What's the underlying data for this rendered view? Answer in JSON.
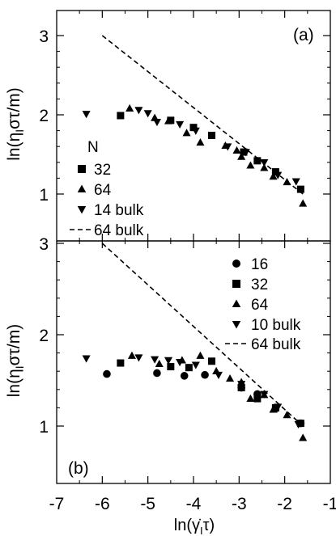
{
  "chart_data": [
    {
      "type": "scatter",
      "panel_label": "(a)",
      "ylabel": "ln(η_I στ/m)",
      "xlabel": "",
      "xlim": [
        -7,
        -1
      ],
      "ylim": [
        0.6,
        3
      ],
      "yticks": [
        "1",
        "2",
        "3"
      ],
      "legend_title": "N",
      "legend_placement": "left-lower",
      "series": [
        {
          "name": "32",
          "marker": "square",
          "points": [
            [
              -5.6,
              1.99
            ],
            [
              -4.5,
              1.93
            ],
            [
              -4.0,
              1.84
            ],
            [
              -3.6,
              1.74
            ],
            [
              -2.9,
              1.53
            ],
            [
              -2.6,
              1.42
            ],
            [
              -2.2,
              1.28
            ],
            [
              -1.65,
              1.06
            ]
          ]
        },
        {
          "name": "64",
          "marker": "triangle-up",
          "points": [
            [
              -5.4,
              2.08
            ],
            [
              -4.85,
              1.96
            ],
            [
              -4.55,
              1.92
            ],
            [
              -4.15,
              1.77
            ],
            [
              -3.85,
              1.65
            ],
            [
              -3.3,
              1.61
            ],
            [
              -3.05,
              1.55
            ],
            [
              -2.95,
              1.47
            ],
            [
              -2.75,
              1.36
            ],
            [
              -2.45,
              1.33
            ],
            [
              -2.25,
              1.22
            ],
            [
              -1.95,
              1.15
            ],
            [
              -1.6,
              0.88
            ]
          ]
        },
        {
          "name": "14 bulk",
          "marker": "triangle-down",
          "points": [
            [
              -6.35,
              2.01
            ],
            [
              -5.2,
              2.06
            ],
            [
              -5.0,
              2.02
            ],
            [
              -4.8,
              1.91
            ],
            [
              -4.3,
              1.88
            ],
            [
              -3.95,
              1.8
            ],
            [
              -3.25,
              1.6
            ],
            [
              -2.85,
              1.53
            ],
            [
              -2.45,
              1.4
            ],
            [
              -2.15,
              1.24
            ],
            [
              -1.75,
              1.16
            ]
          ]
        },
        {
          "name": "64 bulk",
          "style": "dashed",
          "points": [
            [
              -6.0,
              3.0
            ],
            [
              -1.6,
              1.0
            ]
          ]
        }
      ]
    },
    {
      "type": "scatter",
      "panel_label": "(b)",
      "ylabel": "ln(η_I στ/m)",
      "xlabel": "ln(γ̇_I τ)",
      "xlim": [
        -7,
        -1
      ],
      "ylim": [
        0.6,
        3
      ],
      "yticks": [
        "1",
        "2",
        "3"
      ],
      "xticks": [
        "-7",
        "-6",
        "-5",
        "-4",
        "-3",
        "-2",
        "-1"
      ],
      "legend_placement": "top-right",
      "series": [
        {
          "name": "16",
          "marker": "circle",
          "points": [
            [
              -5.9,
              1.57
            ],
            [
              -4.8,
              1.58
            ],
            [
              -4.2,
              1.55
            ],
            [
              -3.75,
              1.56
            ],
            [
              -2.95,
              1.42
            ],
            [
              -2.6,
              1.35
            ],
            [
              -2.2,
              1.19
            ],
            [
              -1.65,
              1.03
            ]
          ]
        },
        {
          "name": "32",
          "marker": "square",
          "points": [
            [
              -5.6,
              1.69
            ],
            [
              -4.5,
              1.65
            ],
            [
              -4.1,
              1.64
            ],
            [
              -3.6,
              1.71
            ],
            [
              -2.95,
              1.42
            ],
            [
              -2.6,
              1.3
            ],
            [
              -2.2,
              1.2
            ],
            [
              -1.65,
              1.03
            ]
          ]
        },
        {
          "name": "64",
          "marker": "triangle-up",
          "points": [
            [
              -5.35,
              1.77
            ],
            [
              -4.75,
              1.68
            ],
            [
              -4.25,
              1.72
            ],
            [
              -3.85,
              1.77
            ],
            [
              -3.5,
              1.6
            ],
            [
              -3.2,
              1.52
            ],
            [
              -2.95,
              1.48
            ],
            [
              -2.75,
              1.3
            ],
            [
              -2.45,
              1.34
            ],
            [
              -2.25,
              1.18
            ],
            [
              -1.95,
              1.12
            ],
            [
              -1.6,
              0.87
            ]
          ]
        },
        {
          "name": "10 bulk",
          "marker": "triangle-down",
          "points": [
            [
              -6.35,
              1.74
            ],
            [
              -5.2,
              1.75
            ],
            [
              -4.85,
              1.73
            ],
            [
              -4.55,
              1.72
            ],
            [
              -4.3,
              1.7
            ],
            [
              -3.95,
              1.67
            ],
            [
              -3.45,
              1.56
            ],
            [
              -2.95,
              1.46
            ],
            [
              -2.45,
              1.35
            ],
            [
              -2.15,
              1.21
            ],
            [
              -1.7,
              1.02
            ]
          ]
        },
        {
          "name": "64 bulk",
          "style": "dashed",
          "points": [
            [
              -6.0,
              3.0
            ],
            [
              -1.6,
              1.0
            ]
          ]
        }
      ]
    }
  ]
}
